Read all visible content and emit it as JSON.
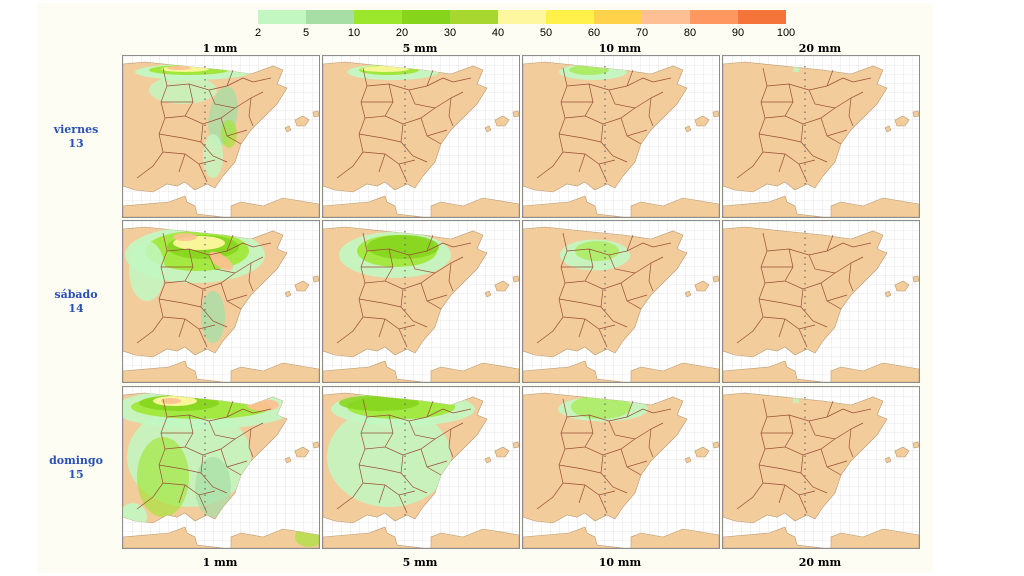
{
  "legend": {
    "ticks": [
      "2",
      "5",
      "10",
      "20",
      "30",
      "40",
      "50",
      "60",
      "70",
      "80",
      "90",
      "100"
    ],
    "colors": [
      "#c2f7c2",
      "#a6dea6",
      "#9ce62c",
      "#86d41c",
      "#a8d830",
      "#fff7a0",
      "#fff04a",
      "#ffd24a",
      "#ffbf94",
      "#ff9860",
      "#f4743a"
    ]
  },
  "columns": [
    {
      "label": "1 mm"
    },
    {
      "label": "5 mm"
    },
    {
      "label": "10 mm"
    },
    {
      "label": "20 mm"
    }
  ],
  "rows": [
    {
      "day": "viernes",
      "date": "13"
    },
    {
      "day": "sábado",
      "date": "14"
    },
    {
      "day": "domingo",
      "date": "15"
    }
  ],
  "colors": {
    "land": "#f2cc9b",
    "sea": "#ffffff",
    "border": "#9c4e36",
    "grid": "#d3d3d3",
    "row_label": "#2a4fb5"
  }
}
